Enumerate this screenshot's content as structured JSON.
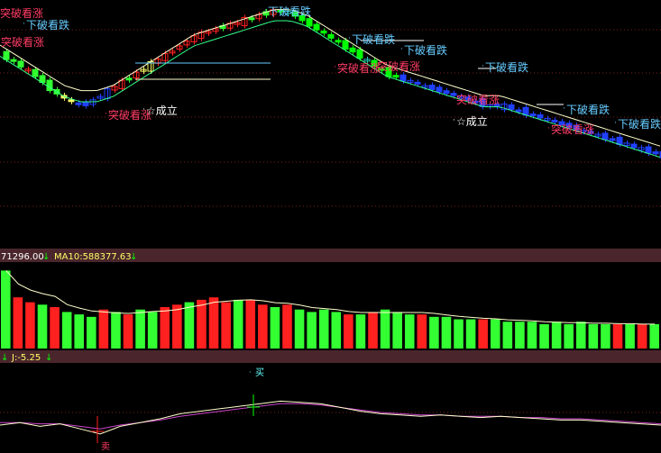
{
  "colors": {
    "bg": "#000000",
    "up": "#ff2020",
    "down": "#00ff00",
    "weak": "#2040ff",
    "cyan": "#20c0b0",
    "yellow": "#ffff66",
    "ma": "#ffffcc",
    "separator": "#5a2f35",
    "label_blue": "#66ccff",
    "label_red": "#ff3c64",
    "label_white": "#ffffff"
  },
  "price_panel": {
    "signals": [
      {
        "text": "下破看跌",
        "kind": "break-down"
      },
      {
        "text": "突破看涨",
        "kind": "break-up"
      },
      {
        "text": "下破看跌",
        "kind": "break-down"
      },
      {
        "text": "突破看涨",
        "kind": "break-up"
      },
      {
        "text": "☆成立",
        "kind": "confirm"
      },
      {
        "text": "下破看跌",
        "kind": "break-down"
      },
      {
        "text": "下破看跌",
        "kind": "break-down"
      },
      {
        "text": "突破看涨",
        "kind": "break-up"
      },
      {
        "text": "突破看涨",
        "kind": "break-up"
      },
      {
        "text": "下破看跌",
        "kind": "break-down"
      },
      {
        "text": "突破看涨",
        "kind": "break-up"
      },
      {
        "text": "☆成立",
        "kind": "confirm"
      },
      {
        "text": "下破看跌",
        "kind": "break-down"
      },
      {
        "text": "突破看涨",
        "kind": "break-up"
      },
      {
        "text": "下破看跌",
        "kind": "break-down"
      },
      {
        "text": "突破看涨",
        "kind": "break-up"
      }
    ]
  },
  "volume_panel": {
    "header_left": "71296.00",
    "ma_label": "MA10:588377.63"
  },
  "indicator_panel": {
    "header": "J:-5.25",
    "buy_label": "买",
    "sell_label": "卖"
  },
  "chart_data": [
    {
      "type": "candlestick",
      "close_trend": [
        40,
        38,
        36,
        33,
        31,
        30,
        32,
        34,
        36,
        38,
        40,
        42,
        44,
        45,
        46,
        47,
        48,
        49,
        48,
        46,
        44,
        42,
        40,
        38,
        36,
        35,
        34,
        33,
        32,
        31,
        30,
        30,
        29,
        28,
        27,
        26,
        25,
        24,
        23,
        22,
        21,
        20
      ],
      "ma": [
        41,
        39,
        37,
        35,
        33,
        32,
        32,
        33,
        35,
        37,
        39,
        41,
        43,
        44,
        45,
        46,
        47,
        48,
        48,
        47,
        45,
        43,
        41,
        39,
        37,
        36,
        35,
        34,
        33,
        32,
        31,
        31,
        30,
        29,
        28,
        27,
        26,
        25,
        24,
        23,
        22,
        21
      ]
    },
    {
      "type": "bar",
      "values": [
        1.6,
        1.05,
        0.95,
        0.9,
        0.85,
        0.75,
        0.7,
        0.65,
        0.8,
        0.75,
        0.7,
        0.8,
        0.75,
        0.85,
        0.9,
        0.95,
        1.0,
        1.05,
        0.95,
        1.0,
        1.0,
        0.9,
        0.85,
        0.9,
        0.8,
        0.75,
        0.8,
        0.75,
        0.7,
        0.7,
        0.75,
        0.8,
        0.75,
        0.7,
        0.7,
        0.65,
        0.65,
        0.6,
        0.6,
        0.6,
        0.6,
        0.55,
        0.55,
        0.55,
        0.5,
        0.55,
        0.5,
        0.55,
        0.5,
        0.5,
        0.5,
        0.5,
        0.5,
        0.5
      ],
      "colors": [
        "down",
        "up",
        "up",
        "down",
        "up",
        "down",
        "down",
        "down",
        "up",
        "down",
        "up",
        "down",
        "down",
        "up",
        "up",
        "down",
        "up",
        "up",
        "up",
        "down",
        "up",
        "up",
        "down",
        "up",
        "down",
        "down",
        "down",
        "down",
        "up",
        "down",
        "up",
        "down",
        "down",
        "down",
        "up",
        "down",
        "down",
        "down",
        "down",
        "up",
        "down",
        "down",
        "down",
        "down",
        "down",
        "down",
        "down",
        "down",
        "down",
        "down",
        "up",
        "down",
        "up",
        "down"
      ]
    },
    {
      "type": "line",
      "j": [
        -5,
        -3,
        -6,
        -4,
        -8,
        -12,
        -6,
        -3,
        0,
        4,
        6,
        8,
        10,
        12,
        14,
        13,
        12,
        9,
        6,
        4,
        3,
        2,
        3,
        2,
        1,
        2,
        1,
        0,
        -1,
        -1,
        -2,
        -3,
        -4,
        -5
      ],
      "k": [
        -3,
        -3,
        -4,
        -4,
        -6,
        -8,
        -5,
        -3,
        -1,
        2,
        4,
        6,
        8,
        10,
        12,
        12,
        11,
        9,
        7,
        5,
        4,
        3,
        3,
        2,
        2,
        2,
        1,
        1,
        0,
        0,
        -1,
        -2,
        -3,
        -4
      ]
    }
  ]
}
